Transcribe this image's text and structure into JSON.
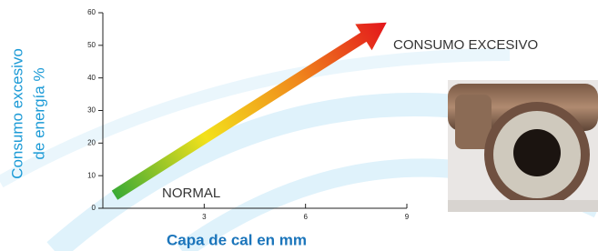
{
  "chart_data": {
    "type": "line",
    "ylabel": [
      "Consumo excesivo",
      "de energía %"
    ],
    "xlabel": "Capa de cal en mm",
    "annotations": [
      "CONSUMO EXCESIVO",
      "NORMAL"
    ],
    "series": [
      {
        "x": [
          0.35,
          8.4
        ],
        "values": [
          4,
          57
        ],
        "colors": [
          "#3aaa35",
          "#f3e11b",
          "#f08a1c",
          "#e3151c"
        ]
      }
    ],
    "xlim": [
      0,
      9
    ],
    "xticks": [
      3,
      6,
      9
    ],
    "ylim": [
      0,
      60
    ],
    "yticks": [
      0,
      10,
      20,
      30,
      40,
      50,
      60
    ]
  }
}
